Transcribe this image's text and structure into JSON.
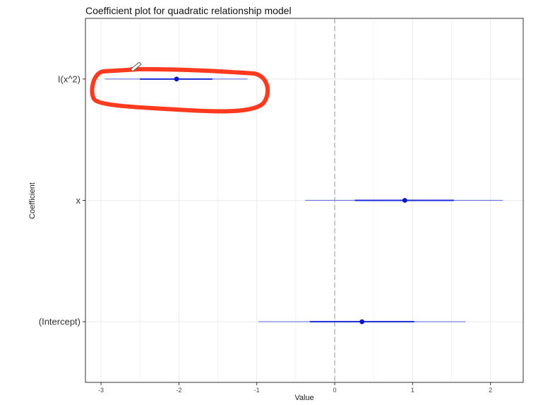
{
  "chart_data": {
    "type": "coefficient-plot",
    "title": "Coefficient plot for quadratic relationship model",
    "xlabel": "Value",
    "ylabel": "Coefficient",
    "xlim": [
      -3.2,
      2.42
    ],
    "x_ticks": [
      -3,
      -2,
      -1,
      0,
      1,
      2
    ],
    "x_tick_labels": [
      "-3",
      "-2",
      "-1",
      "0",
      "1",
      "2"
    ],
    "reference_line": 0,
    "grid": true,
    "categories": [
      "(Intercept)",
      "x",
      "I(x^2)"
    ],
    "estimates": [
      {
        "name": "(Intercept)",
        "value": 0.35,
        "inner": [
          -0.32,
          1.02
        ],
        "outer": [
          -0.98,
          1.68
        ]
      },
      {
        "name": "x",
        "value": 0.9,
        "inner": [
          0.26,
          1.53
        ],
        "outer": [
          -0.38,
          2.16
        ]
      },
      {
        "name": "I(x^2)",
        "value": -2.03,
        "inner": [
          -2.5,
          -1.57
        ],
        "outer": [
          -2.95,
          -1.12
        ]
      }
    ],
    "colors": {
      "point": "#0a14c8",
      "inner": "#1a2ad8",
      "outer": "#6b73de",
      "annotation": "#ff3a1f",
      "reference": "#a0a0a0",
      "grid": "#ececec"
    }
  }
}
